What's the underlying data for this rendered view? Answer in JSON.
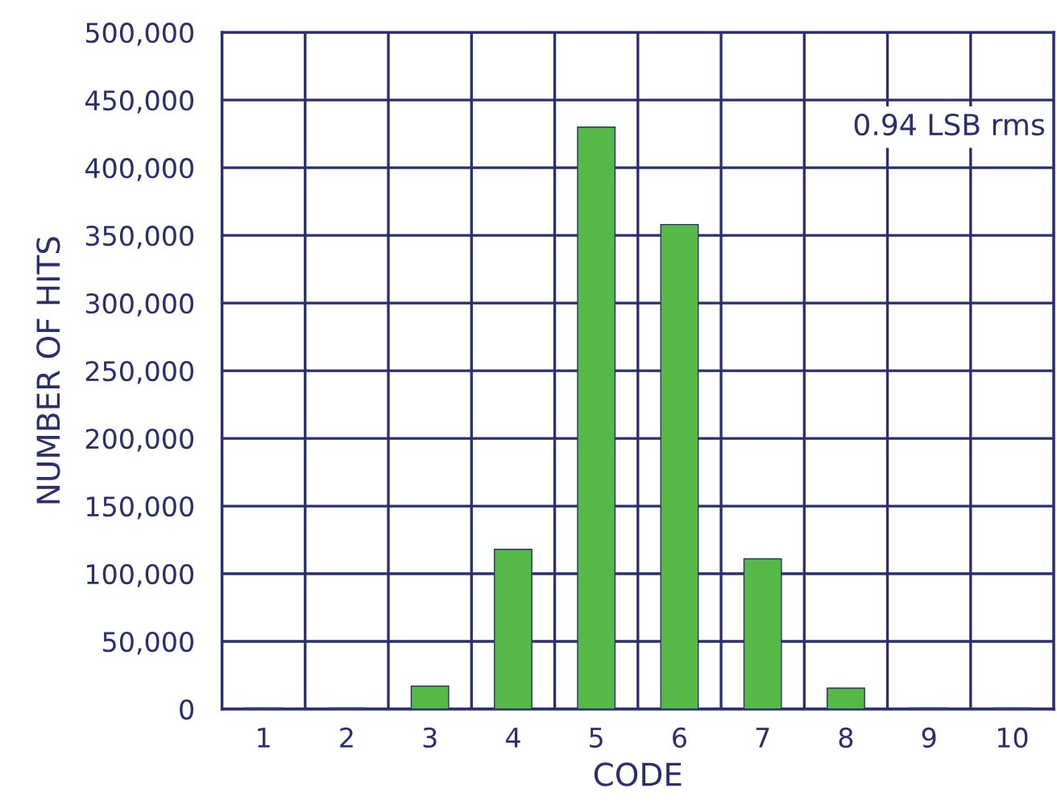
{
  "chart_data": {
    "type": "bar",
    "xlabel": "CODE",
    "ylabel": "NUMBER OF HITS",
    "categories": [
      "1",
      "2",
      "3",
      "4",
      "5",
      "6",
      "7",
      "8",
      "9",
      "10"
    ],
    "values": [
      1000,
      1000,
      17000,
      118000,
      430000,
      358000,
      111000,
      15500,
      1000,
      1000
    ],
    "color": "#56b847",
    "ylim": [
      0,
      500000
    ],
    "yticks": [
      0,
      {
        "value": 50000,
        "label": "50,000"
      },
      {
        "value": 100000,
        "label": "100,000"
      },
      {
        "value": 150000,
        "label": "150,000"
      },
      {
        "value": 200000,
        "label": "200,000"
      },
      {
        "value": 250000,
        "label": "250,000"
      },
      {
        "value": 300000,
        "label": "300,000"
      },
      {
        "value": 350000,
        "label": "350,000"
      },
      {
        "value": 400000,
        "label": "400,000"
      },
      {
        "value": 450000,
        "label": "450,000"
      },
      {
        "value": 500000,
        "label": "500,000"
      }
    ],
    "grid": true,
    "annotations": [
      "0.94 LSB rms"
    ]
  }
}
